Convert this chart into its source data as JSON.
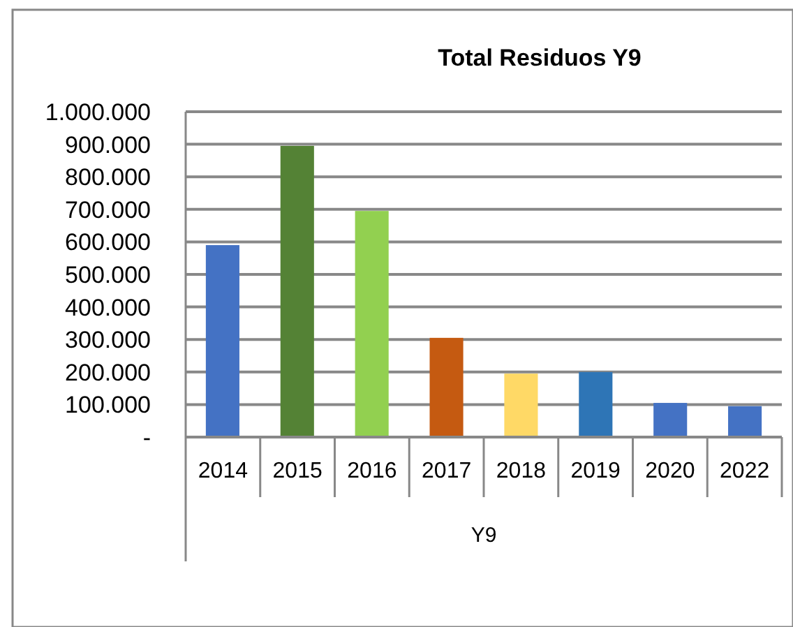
{
  "chart_data": {
    "type": "bar",
    "title": "Total Residuos Y9",
    "xlabel": "Y9",
    "categories": [
      "2014",
      "2015",
      "2016",
      "2017",
      "2018",
      "2019",
      "2020",
      "2022"
    ],
    "values": [
      590000,
      895000,
      695000,
      305000,
      195000,
      200000,
      105000,
      95000
    ],
    "colors": [
      "#4472c4",
      "#548235",
      "#92d050",
      "#c55a11",
      "#ffd966",
      "#2e75b6",
      "#4472c4",
      "#4472c4"
    ],
    "ylim": [
      0,
      1000000
    ],
    "yticks": [
      {
        "value": 0,
        "label": "-"
      },
      {
        "value": 100000,
        "label": "100.000"
      },
      {
        "value": 200000,
        "label": "200.000"
      },
      {
        "value": 300000,
        "label": "300.000"
      },
      {
        "value": 400000,
        "label": "400.000"
      },
      {
        "value": 500000,
        "label": "500.000"
      },
      {
        "value": 600000,
        "label": "600.000"
      },
      {
        "value": 700000,
        "label": "700.000"
      },
      {
        "value": 800000,
        "label": "800.000"
      },
      {
        "value": 900000,
        "label": "900.000"
      },
      {
        "value": 1000000,
        "label": "1.000.000"
      }
    ],
    "grid": "y"
  }
}
